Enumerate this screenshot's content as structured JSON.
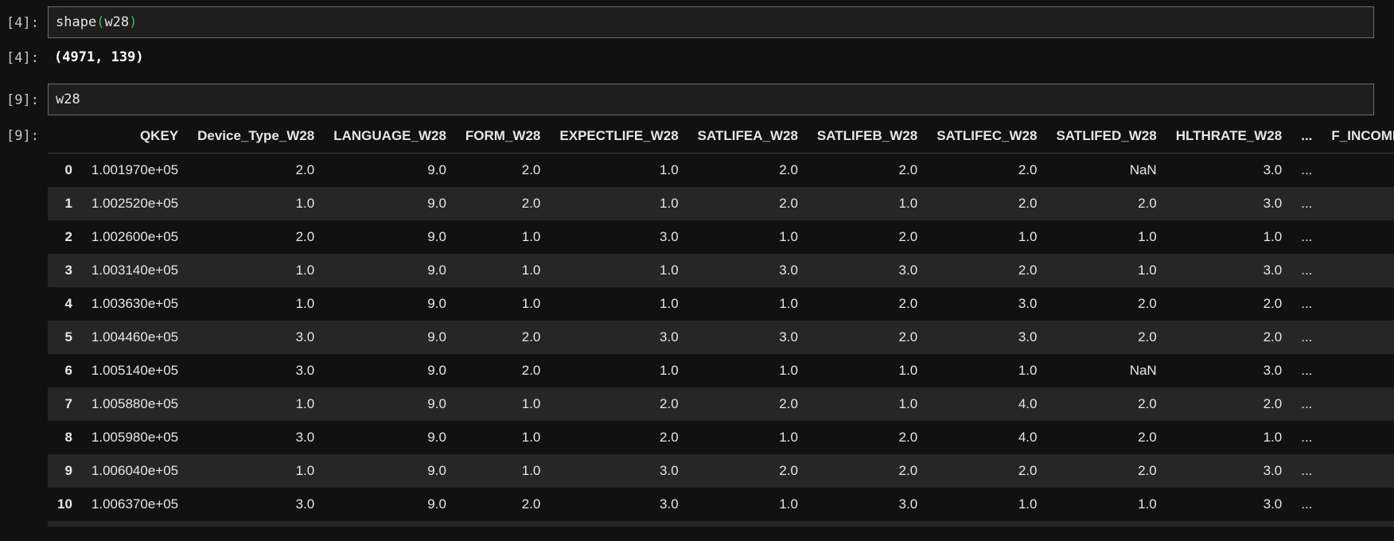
{
  "cells": [
    {
      "prompt_in": "[4]:",
      "code_fn": "shape",
      "code_open": "(",
      "code_arg": "w28",
      "code_close": ")",
      "prompt_out": "[4]:",
      "output": "(4971, 139)"
    },
    {
      "prompt_in": "[9]:",
      "code": "w28",
      "prompt_out": "[9]:"
    }
  ],
  "dataframe": {
    "columns": [
      "",
      "QKEY",
      "Device_Type_W28",
      "LANGUAGE_W28",
      "FORM_W28",
      "EXPECTLIFE_W28",
      "SATLIFEA_W28",
      "SATLIFEB_W28",
      "SATLIFEC_W28",
      "SATLIFED_W28",
      "HLTHRATE_W28",
      "...",
      "F_INCOME_R"
    ],
    "rows": [
      [
        "0",
        "1.001970e+05",
        "2.0",
        "9.0",
        "2.0",
        "1.0",
        "2.0",
        "2.0",
        "2.0",
        "NaN",
        "3.0",
        "...",
        ""
      ],
      [
        "1",
        "1.002520e+05",
        "1.0",
        "9.0",
        "2.0",
        "1.0",
        "2.0",
        "1.0",
        "2.0",
        "2.0",
        "3.0",
        "...",
        ""
      ],
      [
        "2",
        "1.002600e+05",
        "2.0",
        "9.0",
        "1.0",
        "3.0",
        "1.0",
        "2.0",
        "1.0",
        "1.0",
        "1.0",
        "...",
        ""
      ],
      [
        "3",
        "1.003140e+05",
        "1.0",
        "9.0",
        "1.0",
        "1.0",
        "3.0",
        "3.0",
        "2.0",
        "1.0",
        "3.0",
        "...",
        ""
      ],
      [
        "4",
        "1.003630e+05",
        "1.0",
        "9.0",
        "1.0",
        "1.0",
        "1.0",
        "2.0",
        "3.0",
        "2.0",
        "2.0",
        "...",
        ""
      ],
      [
        "5",
        "1.004460e+05",
        "3.0",
        "9.0",
        "2.0",
        "3.0",
        "3.0",
        "2.0",
        "3.0",
        "2.0",
        "2.0",
        "...",
        ""
      ],
      [
        "6",
        "1.005140e+05",
        "3.0",
        "9.0",
        "2.0",
        "1.0",
        "1.0",
        "1.0",
        "1.0",
        "NaN",
        "3.0",
        "...",
        ""
      ],
      [
        "7",
        "1.005880e+05",
        "1.0",
        "9.0",
        "1.0",
        "2.0",
        "2.0",
        "1.0",
        "4.0",
        "2.0",
        "2.0",
        "...",
        ""
      ],
      [
        "8",
        "1.005980e+05",
        "3.0",
        "9.0",
        "1.0",
        "2.0",
        "1.0",
        "2.0",
        "4.0",
        "2.0",
        "1.0",
        "...",
        ""
      ],
      [
        "9",
        "1.006040e+05",
        "1.0",
        "9.0",
        "1.0",
        "3.0",
        "2.0",
        "2.0",
        "2.0",
        "2.0",
        "3.0",
        "...",
        ""
      ],
      [
        "10",
        "1.006370e+05",
        "3.0",
        "9.0",
        "2.0",
        "3.0",
        "1.0",
        "3.0",
        "1.0",
        "1.0",
        "3.0",
        "...",
        ""
      ],
      [
        "",
        "",
        "",
        "",
        "",
        "",
        "",
        "",
        "",
        "",
        "",
        "",
        ""
      ]
    ]
  }
}
